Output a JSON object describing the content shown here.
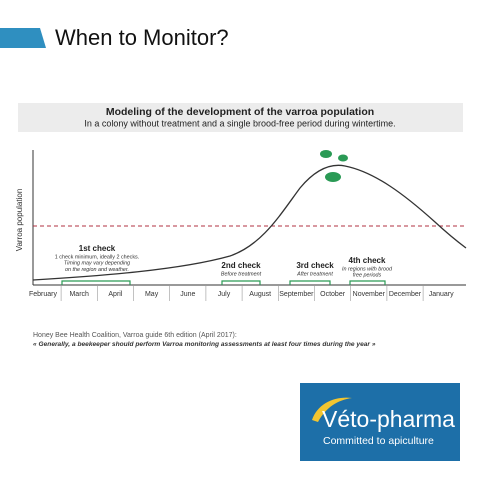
{
  "header": {
    "title": "When to Monitor?"
  },
  "chart": {
    "title": "Modeling of the development of the varroa population",
    "subtitle": "In a colony without treatment and a single brood-free period during wintertime.",
    "y_label": "Varroa population",
    "months": [
      "February",
      "March",
      "April",
      "May",
      "June",
      "July",
      "August",
      "September",
      "October",
      "November",
      "December",
      "January"
    ],
    "checks": [
      {
        "title": "1st check",
        "notes": [
          "1 check minimum, ideally 2 checks.",
          "Timing may vary depending",
          "on the region and weather."
        ]
      },
      {
        "title": "2nd check",
        "notes": [
          "Before treatment"
        ]
      },
      {
        "title": "3rd check",
        "notes": [
          "After treatment"
        ]
      },
      {
        "title": "4th check",
        "notes": [
          "In regions with brood",
          "free periods"
        ]
      }
    ]
  },
  "citation": {
    "source": "Honey Bee Health Coalition, Varroa guide 6th edition (April 2017):",
    "quote": "« Generally, a beekeeper should perform Varroa monitoring assessments at least four times during the year »"
  },
  "logo": {
    "name": "Véto-pharma",
    "tagline": "Committed to apiculture"
  }
}
